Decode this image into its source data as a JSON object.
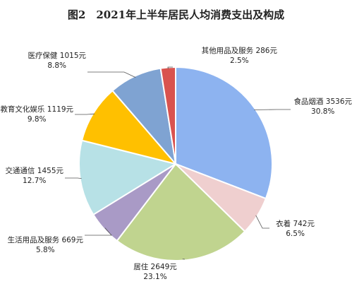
{
  "chart_data": {
    "type": "pie",
    "title": "图2　2021年上半年居民人均消费支出及构成",
    "start_angle_deg": 0,
    "direction": "clockwise",
    "unit": "元",
    "slices": [
      {
        "name": "食品烟酒",
        "value": 3536,
        "percent": "30.8%",
        "color": "#8DB3F0",
        "label_text": "食品烟酒 3536元"
      },
      {
        "name": "衣着",
        "value": 742,
        "percent": "6.5%",
        "color": "#EFCFCF",
        "label_text": "衣着 742元"
      },
      {
        "name": "居住",
        "value": 2649,
        "percent": "23.1%",
        "color": "#C0D48F",
        "label_text": "居住 2649元"
      },
      {
        "name": "生活用品及服务",
        "value": 669,
        "percent": "5.8%",
        "color": "#A99AC6",
        "label_text": "生活用品及服务 669元"
      },
      {
        "name": "交通通信",
        "value": 1455,
        "percent": "12.7%",
        "color": "#B7E1E6",
        "label_text": "交通通信 1455元"
      },
      {
        "name": "教育文化娱乐",
        "value": 1119,
        "percent": "9.8%",
        "color": "#FFC000",
        "label_text": "教育文化娱乐 1119元"
      },
      {
        "name": "医疗保健",
        "value": 1015,
        "percent": "8.8%",
        "color": "#7FA3D2",
        "label_text": "医疗保健 1015元"
      },
      {
        "name": "其他用品及服务",
        "value": 286,
        "percent": "2.5%",
        "color": "#D9534F",
        "label_text": "其他用品及服务 286元"
      }
    ]
  }
}
